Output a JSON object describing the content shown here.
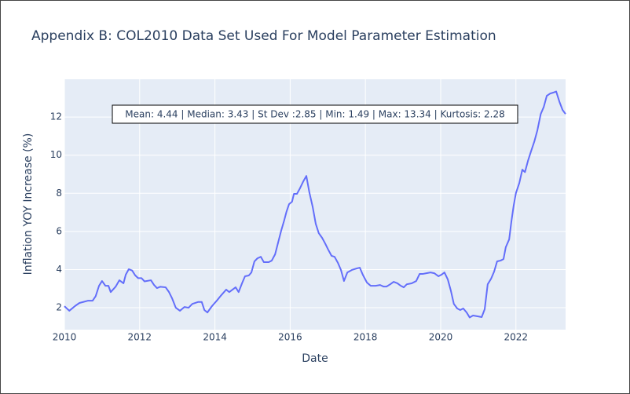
{
  "chart_data": {
    "type": "line",
    "title": "Appendix B: COL2010 Data Set Used For Model Parameter Estimation",
    "xlabel": "Date",
    "ylabel": "Inflation YOY Increase (%)",
    "annotation": "Mean: 4.44 | Median: 3.43 | St Dev :2.85 | Min: 1.49 | Max: 13.34 | Kurtosis: 2.28",
    "xlim": [
      2010,
      2023.32
    ],
    "xticks": [
      2010,
      2012,
      2014,
      2016,
      2018,
      2020,
      2022
    ],
    "ylim": [
      0.85,
      13.98
    ],
    "yticks": [
      2,
      4,
      6,
      8,
      10,
      12
    ],
    "grid": true,
    "series": [
      {
        "color": "#636efa",
        "x": [
          2010.0,
          2010.13,
          2010.29,
          2010.4,
          2010.5,
          2010.63,
          2010.75,
          2010.83,
          2010.92,
          2011.0,
          2011.09,
          2011.17,
          2011.23,
          2011.36,
          2011.46,
          2011.57,
          2011.63,
          2011.71,
          2011.8,
          2011.88,
          2011.96,
          2012.05,
          2012.13,
          2012.3,
          2012.38,
          2012.46,
          2012.55,
          2012.69,
          2012.78,
          2012.86,
          2012.96,
          2013.07,
          2013.19,
          2013.3,
          2013.4,
          2013.55,
          2013.65,
          2013.72,
          2013.8,
          2013.92,
          2014.05,
          2014.17,
          2014.3,
          2014.38,
          2014.55,
          2014.63,
          2014.72,
          2014.8,
          2014.9,
          2014.97,
          2015.05,
          2015.13,
          2015.22,
          2015.3,
          2015.43,
          2015.51,
          2015.6,
          2015.68,
          2015.76,
          2015.84,
          2015.9,
          2015.97,
          2016.05,
          2016.1,
          2016.18,
          2016.26,
          2016.35,
          2016.43,
          2016.51,
          2016.6,
          2016.68,
          2016.76,
          2016.85,
          2016.93,
          2017.01,
          2017.1,
          2017.18,
          2017.27,
          2017.35,
          2017.43,
          2017.52,
          2017.64,
          2017.77,
          2017.85,
          2017.93,
          2018.04,
          2018.14,
          2018.27,
          2018.39,
          2018.48,
          2018.56,
          2018.66,
          2018.75,
          2018.85,
          2018.94,
          2019.02,
          2019.1,
          2019.23,
          2019.35,
          2019.44,
          2019.52,
          2019.62,
          2019.73,
          2019.83,
          2019.94,
          2020.02,
          2020.1,
          2020.19,
          2020.27,
          2020.35,
          2020.44,
          2020.52,
          2020.6,
          2020.69,
          2020.77,
          2020.86,
          2020.98,
          2021.09,
          2021.17,
          2021.25,
          2021.34,
          2021.42,
          2021.5,
          2021.59,
          2021.67,
          2021.73,
          2021.82,
          2021.88,
          2021.94,
          2022.0,
          2022.09,
          2022.17,
          2022.24,
          2022.32,
          2022.4,
          2022.49,
          2022.57,
          2022.66,
          2022.74,
          2022.82,
          2022.91,
          2022.99,
          2023.07,
          2023.16,
          2023.24,
          2023.32
        ],
        "values": [
          2.08,
          1.84,
          2.1,
          2.25,
          2.3,
          2.37,
          2.37,
          2.6,
          3.15,
          3.4,
          3.15,
          3.15,
          2.82,
          3.1,
          3.44,
          3.28,
          3.73,
          4.02,
          3.95,
          3.7,
          3.55,
          3.55,
          3.38,
          3.44,
          3.2,
          3.03,
          3.1,
          3.07,
          2.82,
          2.5,
          2.0,
          1.84,
          2.04,
          2.0,
          2.2,
          2.3,
          2.3,
          1.88,
          1.75,
          2.08,
          2.37,
          2.66,
          2.95,
          2.82,
          3.07,
          2.82,
          3.28,
          3.65,
          3.69,
          3.85,
          4.43,
          4.59,
          4.67,
          4.39,
          4.39,
          4.47,
          4.8,
          5.42,
          6.03,
          6.57,
          7.02,
          7.43,
          7.56,
          7.97,
          7.97,
          8.26,
          8.63,
          8.91,
          8.05,
          7.27,
          6.4,
          5.91,
          5.66,
          5.37,
          5.05,
          4.72,
          4.67,
          4.35,
          3.98,
          3.4,
          3.85,
          3.98,
          4.06,
          4.1,
          3.73,
          3.32,
          3.15,
          3.15,
          3.19,
          3.11,
          3.11,
          3.23,
          3.36,
          3.28,
          3.15,
          3.07,
          3.23,
          3.28,
          3.4,
          3.77,
          3.77,
          3.81,
          3.85,
          3.81,
          3.65,
          3.73,
          3.85,
          3.48,
          2.9,
          2.2,
          1.96,
          1.88,
          1.96,
          1.75,
          1.49,
          1.59,
          1.55,
          1.51,
          1.92,
          3.23,
          3.52,
          3.89,
          4.43,
          4.47,
          4.55,
          5.17,
          5.58,
          6.53,
          7.35,
          8.01,
          8.54,
          9.24,
          9.11,
          9.7,
          10.19,
          10.72,
          11.3,
          12.16,
          12.53,
          13.11,
          13.23,
          13.28,
          13.34,
          12.78,
          12.37,
          12.16
        ]
      }
    ]
  }
}
